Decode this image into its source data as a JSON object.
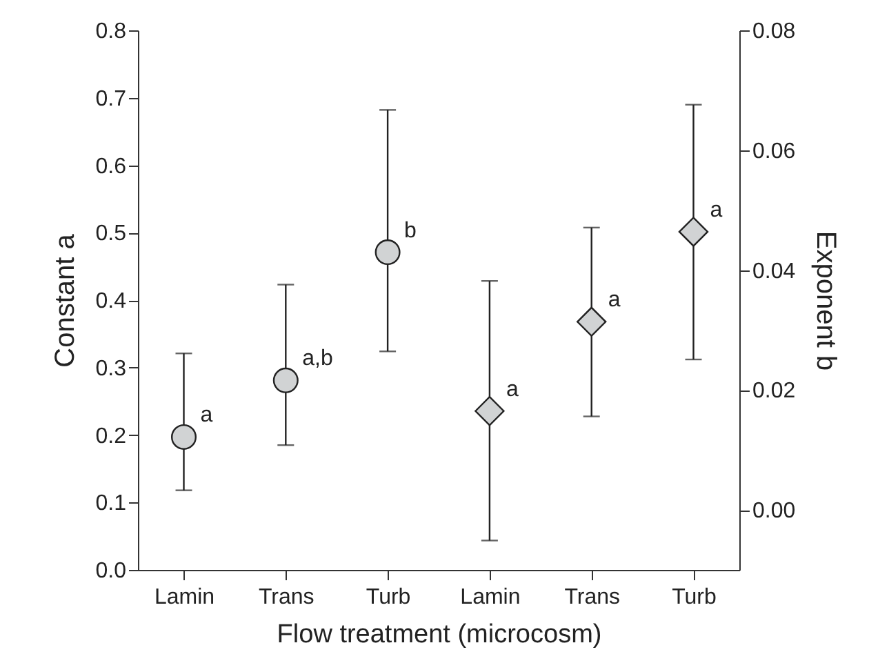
{
  "chart_data": {
    "type": "scatter",
    "xlabel": "Flow treatment (microcosm)",
    "ylabel": "Constant a",
    "y2label": "Exponent b",
    "categories": [
      "Lamin",
      "Trans",
      "Turb",
      "Lamin",
      "Trans",
      "Turb"
    ],
    "series": [
      {
        "color": "#d1d3d4",
        "marker": "circle",
        "values": [
          0.197,
          0.281,
          0.471,
          null,
          null,
          null
        ],
        "errors": [
          [
            0.118,
            0.321
          ],
          [
            0.185,
            0.423
          ],
          [
            0.324,
            0.682
          ],
          null,
          null,
          null
        ]
      },
      {
        "color": "#d1d3d4",
        "marker": "diamond",
        "axis": "y2",
        "values": [
          null,
          null,
          null,
          0.0165,
          0.0314,
          0.0464
        ],
        "errors": [
          null,
          null,
          null,
          [
            -0.0051,
            0.0382
          ],
          [
            0.0156,
            0.0471
          ],
          [
            0.0251,
            0.0676
          ]
        ]
      }
    ],
    "ylim": [
      0,
      0.8
    ],
    "yticks": [
      {
        "value": 0,
        "label": "0.0"
      },
      {
        "value": 0.1,
        "label": "0.1"
      },
      {
        "value": 0.2,
        "label": "0.2"
      },
      {
        "value": 0.3,
        "label": "0.3"
      },
      {
        "value": 0.4,
        "label": "0.4"
      },
      {
        "value": 0.5,
        "label": "0.5"
      },
      {
        "value": 0.6,
        "label": "0.6"
      },
      {
        "value": 0.7,
        "label": "0.7"
      },
      {
        "value": 0.8,
        "label": "0.8"
      }
    ],
    "y2lim": [
      -0.01,
      0.08
    ],
    "y2ticks": [
      {
        "value": 0,
        "label": "0.00"
      },
      {
        "value": 0.02,
        "label": "0.02"
      },
      {
        "value": 0.04,
        "label": "0.04"
      },
      {
        "value": 0.06,
        "label": "0.06"
      },
      {
        "value": 0.08,
        "label": "0.08"
      }
    ],
    "annotations": [
      "a",
      "a,b",
      "b",
      "a",
      "a",
      "a"
    ],
    "grid": false
  }
}
